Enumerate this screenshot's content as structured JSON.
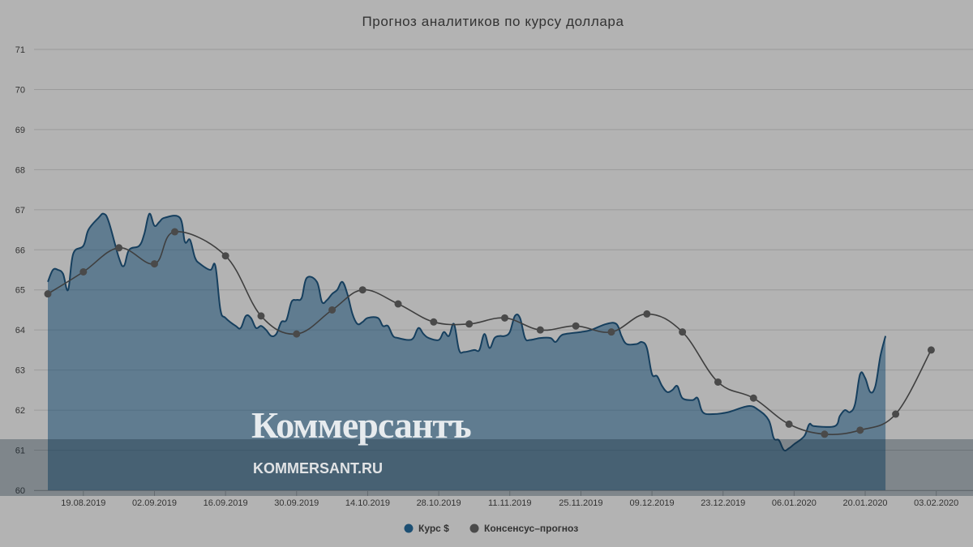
{
  "chart_data": {
    "type": "area",
    "title": "Прогноз аналитиков по курсу доллара",
    "ylim": [
      60,
      71
    ],
    "y_ticks": [
      "60",
      "61",
      "62",
      "63",
      "64",
      "65",
      "66",
      "67",
      "68",
      "69",
      "70",
      "71"
    ],
    "x_tick_labels": [
      "19.08.2019",
      "02.09.2019",
      "16.09.2019",
      "30.09.2019",
      "14.10.2019",
      "28.10.2019",
      "11.11.2019",
      "25.11.2019",
      "09.12.2019",
      "23.12.2019",
      "06.01.2020",
      "20.01.2020",
      "03.02.2020"
    ],
    "x_range": [
      "2019-08-12",
      "2020-02-08"
    ],
    "grid": true,
    "legend_position": "bottom-center",
    "series": [
      {
        "name": "Курс $",
        "type": "area",
        "color": "#1c4f73",
        "points": [
          [
            "2019-08-12",
            65.2
          ],
          [
            "2019-08-13",
            65.5
          ],
          [
            "2019-08-14",
            65.5
          ],
          [
            "2019-08-15",
            65.4
          ],
          [
            "2019-08-16",
            65.0
          ],
          [
            "2019-08-17",
            65.9
          ],
          [
            "2019-08-19",
            66.1
          ],
          [
            "2019-08-20",
            66.5
          ],
          [
            "2019-08-22",
            66.8
          ],
          [
            "2019-08-23",
            66.9
          ],
          [
            "2019-08-24",
            66.7
          ],
          [
            "2019-08-26",
            65.8
          ],
          [
            "2019-08-27",
            65.6
          ],
          [
            "2019-08-28",
            66.0
          ],
          [
            "2019-08-30",
            66.1
          ],
          [
            "2019-08-31",
            66.4
          ],
          [
            "2019-09-01",
            66.9
          ],
          [
            "2019-09-02",
            66.6
          ],
          [
            "2019-09-03",
            66.7
          ],
          [
            "2019-09-04",
            66.8
          ],
          [
            "2019-09-07",
            66.8
          ],
          [
            "2019-09-08",
            66.2
          ],
          [
            "2019-09-09",
            66.25
          ],
          [
            "2019-09-10",
            65.8
          ],
          [
            "2019-09-11",
            65.65
          ],
          [
            "2019-09-13",
            65.5
          ],
          [
            "2019-09-14",
            65.6
          ],
          [
            "2019-09-15",
            64.5
          ],
          [
            "2019-09-16",
            64.3
          ],
          [
            "2019-09-18",
            64.1
          ],
          [
            "2019-09-19",
            64.05
          ],
          [
            "2019-09-20",
            64.35
          ],
          [
            "2019-09-21",
            64.3
          ],
          [
            "2019-09-22",
            64.05
          ],
          [
            "2019-09-23",
            64.1
          ],
          [
            "2019-09-24",
            64.0
          ],
          [
            "2019-09-25",
            63.85
          ],
          [
            "2019-09-26",
            63.9
          ],
          [
            "2019-09-27",
            64.2
          ],
          [
            "2019-09-28",
            64.25
          ],
          [
            "2019-09-29",
            64.7
          ],
          [
            "2019-09-30",
            64.75
          ],
          [
            "2019-10-01",
            64.8
          ],
          [
            "2019-10-02",
            65.3
          ],
          [
            "2019-10-04",
            65.2
          ],
          [
            "2019-10-05",
            64.7
          ],
          [
            "2019-10-06",
            64.75
          ],
          [
            "2019-10-07",
            64.9
          ],
          [
            "2019-10-08",
            65.0
          ],
          [
            "2019-10-09",
            65.2
          ],
          [
            "2019-10-10",
            64.9
          ],
          [
            "2019-10-11",
            64.4
          ],
          [
            "2019-10-12",
            64.15
          ],
          [
            "2019-10-13",
            64.2
          ],
          [
            "2019-10-14",
            64.3
          ],
          [
            "2019-10-16",
            64.3
          ],
          [
            "2019-10-17",
            64.1
          ],
          [
            "2019-10-18",
            64.1
          ],
          [
            "2019-10-19",
            63.85
          ],
          [
            "2019-10-20",
            63.8
          ],
          [
            "2019-10-22",
            63.75
          ],
          [
            "2019-10-23",
            63.8
          ],
          [
            "2019-10-24",
            64.05
          ],
          [
            "2019-10-25",
            63.9
          ],
          [
            "2019-10-26",
            63.8
          ],
          [
            "2019-10-28",
            63.75
          ],
          [
            "2019-10-29",
            63.95
          ],
          [
            "2019-10-30",
            63.85
          ],
          [
            "2019-10-31",
            64.15
          ],
          [
            "2019-11-01",
            63.5
          ],
          [
            "2019-11-02",
            63.45
          ],
          [
            "2019-11-04",
            63.5
          ],
          [
            "2019-11-05",
            63.5
          ],
          [
            "2019-11-06",
            63.9
          ],
          [
            "2019-11-07",
            63.55
          ],
          [
            "2019-11-08",
            63.8
          ],
          [
            "2019-11-09",
            63.85
          ],
          [
            "2019-11-10",
            63.85
          ],
          [
            "2019-11-11",
            63.95
          ],
          [
            "2019-11-12",
            64.35
          ],
          [
            "2019-11-13",
            64.3
          ],
          [
            "2019-11-14",
            63.8
          ],
          [
            "2019-11-15",
            63.75
          ],
          [
            "2019-11-17",
            63.8
          ],
          [
            "2019-11-19",
            63.8
          ],
          [
            "2019-11-20",
            63.7
          ],
          [
            "2019-11-21",
            63.85
          ],
          [
            "2019-11-22",
            63.9
          ],
          [
            "2019-11-25",
            63.95
          ],
          [
            "2019-11-27",
            64.0
          ],
          [
            "2019-11-30",
            64.15
          ],
          [
            "2019-12-02",
            64.15
          ],
          [
            "2019-12-03",
            63.85
          ],
          [
            "2019-12-04",
            63.65
          ],
          [
            "2019-12-06",
            63.65
          ],
          [
            "2019-12-07",
            63.7
          ],
          [
            "2019-12-08",
            63.55
          ],
          [
            "2019-12-09",
            62.9
          ],
          [
            "2019-12-10",
            62.85
          ],
          [
            "2019-12-11",
            62.6
          ],
          [
            "2019-12-12",
            62.45
          ],
          [
            "2019-12-13",
            62.5
          ],
          [
            "2019-12-14",
            62.6
          ],
          [
            "2019-12-15",
            62.3
          ],
          [
            "2019-12-17",
            62.25
          ],
          [
            "2019-12-18",
            62.3
          ],
          [
            "2019-12-19",
            61.95
          ],
          [
            "2019-12-21",
            61.9
          ],
          [
            "2019-12-24",
            61.95
          ],
          [
            "2019-12-28",
            62.1
          ],
          [
            "2019-12-30",
            62.0
          ],
          [
            "2020-01-01",
            61.75
          ],
          [
            "2020-01-02",
            61.3
          ],
          [
            "2020-01-03",
            61.25
          ],
          [
            "2020-01-04",
            61.0
          ],
          [
            "2020-01-05",
            61.05
          ],
          [
            "2020-01-06",
            61.15
          ],
          [
            "2020-01-08",
            61.35
          ],
          [
            "2020-01-09",
            61.65
          ],
          [
            "2020-01-10",
            61.6
          ],
          [
            "2020-01-14",
            61.6
          ],
          [
            "2020-01-15",
            61.85
          ],
          [
            "2020-01-16",
            62.0
          ],
          [
            "2020-01-17",
            61.95
          ],
          [
            "2020-01-18",
            62.15
          ],
          [
            "2020-01-19",
            62.9
          ],
          [
            "2020-01-20",
            62.8
          ],
          [
            "2020-01-21",
            62.45
          ],
          [
            "2020-01-22",
            62.6
          ],
          [
            "2020-01-23",
            63.35
          ],
          [
            "2020-01-24",
            63.85
          ]
        ]
      },
      {
        "name": "Консенсус–прогноз",
        "type": "line",
        "color": "#4a4a4a",
        "points": [
          [
            "2019-08-12",
            64.9
          ],
          [
            "2019-08-19",
            65.45
          ],
          [
            "2019-08-26",
            66.05
          ],
          [
            "2019-09-02",
            65.65
          ],
          [
            "2019-09-06",
            66.45
          ],
          [
            "2019-09-16",
            65.85
          ],
          [
            "2019-09-23",
            64.35
          ],
          [
            "2019-09-30",
            63.9
          ],
          [
            "2019-10-07",
            64.5
          ],
          [
            "2019-10-13",
            65.0
          ],
          [
            "2019-10-20",
            64.65
          ],
          [
            "2019-10-27",
            64.2
          ],
          [
            "2019-11-03",
            64.15
          ],
          [
            "2019-11-10",
            64.3
          ],
          [
            "2019-11-17",
            64.0
          ],
          [
            "2019-11-24",
            64.1
          ],
          [
            "2019-12-01",
            63.95
          ],
          [
            "2019-12-08",
            64.4
          ],
          [
            "2019-12-15",
            63.95
          ],
          [
            "2019-12-22",
            62.7
          ],
          [
            "2019-12-29",
            62.3
          ],
          [
            "2020-01-05",
            61.65
          ],
          [
            "2020-01-12",
            61.4
          ],
          [
            "2020-01-19",
            61.5
          ],
          [
            "2020-01-26",
            61.9
          ],
          [
            "2020-02-02",
            63.5
          ]
        ]
      }
    ]
  },
  "watermark": {
    "logo_text": "Коммерсантъ",
    "url_text": "KOMMERSANT.RU"
  }
}
